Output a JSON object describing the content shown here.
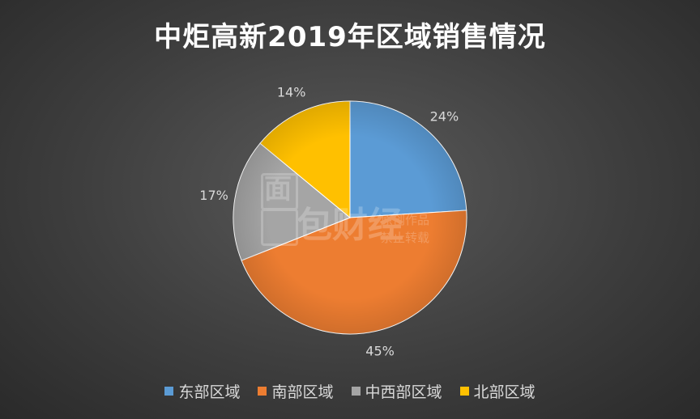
{
  "chart_data": {
    "type": "pie",
    "title": "中炬高新2019年区域销售情况",
    "categories": [
      "东部区域",
      "南部区域",
      "中西部区域",
      "北部区域"
    ],
    "values": [
      24,
      45,
      17,
      14
    ],
    "labels": [
      "24%",
      "45%",
      "17%",
      "14%"
    ],
    "colors": [
      "#5b9bd5",
      "#ed7d31",
      "#a5a5a5",
      "#ffc000"
    ],
    "legend": "bottom"
  },
  "watermark": {
    "glyph_1": "面",
    "glyph_2": "包财经",
    "line_1": "原创作品",
    "line_2": "禁止转载"
  }
}
